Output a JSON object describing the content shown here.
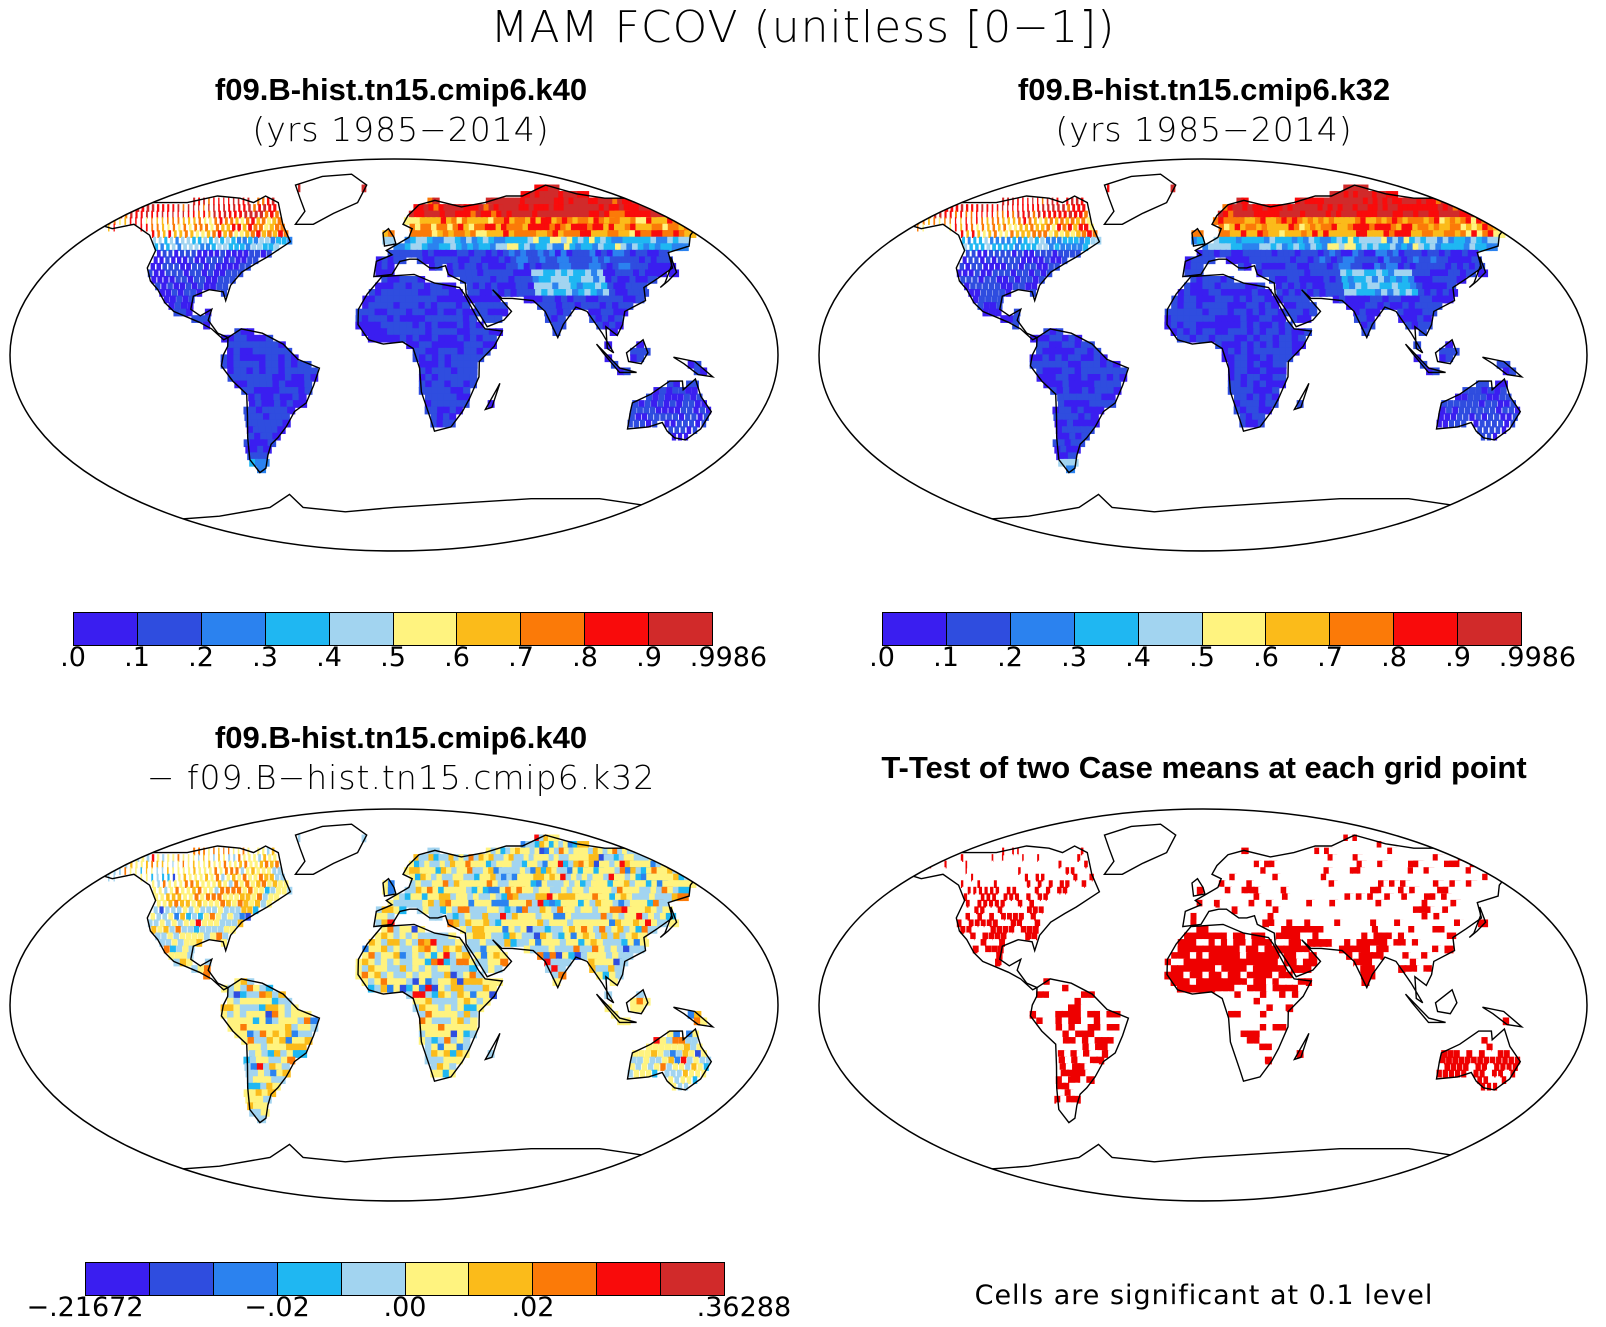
{
  "figure": {
    "title": "MAM FCOV (unitless [0−1])"
  },
  "panels": [
    {
      "title": "f09.B-hist.tn15.cmip6.k40",
      "subtitle": "(yrs 1985−2014)",
      "field": "fcov"
    },
    {
      "title": "f09.B-hist.tn15.cmip6.k32",
      "subtitle": "(yrs 1985−2014)",
      "field": "fcov"
    },
    {
      "title": "f09.B-hist.tn15.cmip6.k40",
      "subtitle": "− f09.B−hist.tn15.cmip6.k32",
      "field": "diff"
    },
    {
      "title": "T-Test of two Case means at each grid point",
      "field": "ttest",
      "note": "Cells are significant at 0.1 level"
    }
  ],
  "colorbars": {
    "fcov": {
      "colors": [
        "#3a1ef0",
        "#2f4ddf",
        "#2b82ef",
        "#1fb7f2",
        "#a2d4f0",
        "#fff37f",
        "#fbbb1a",
        "#fb7a08",
        "#f90b0b",
        "#d12a2a"
      ],
      "labels": [
        ".0",
        ".1",
        ".2",
        ".3",
        ".4",
        ".5",
        ".6",
        ".7",
        ".8",
        ".9",
        ".9986"
      ],
      "label_bins": [
        0,
        1,
        2,
        3,
        4,
        5,
        6,
        7,
        8,
        9,
        10
      ]
    },
    "diff": {
      "colors": [
        "#3a1ef0",
        "#2f4ddf",
        "#2b82ef",
        "#1fb7f2",
        "#a2d4f0",
        "#fff37f",
        "#fbbb1a",
        "#fb7a08",
        "#f90b0b",
        "#d12a2a"
      ],
      "labels": [
        "−.21672",
        "−.02",
        ".00",
        ".02",
        ".36288"
      ],
      "label_bins": [
        0,
        3,
        5,
        7,
        10
      ]
    }
  }
}
